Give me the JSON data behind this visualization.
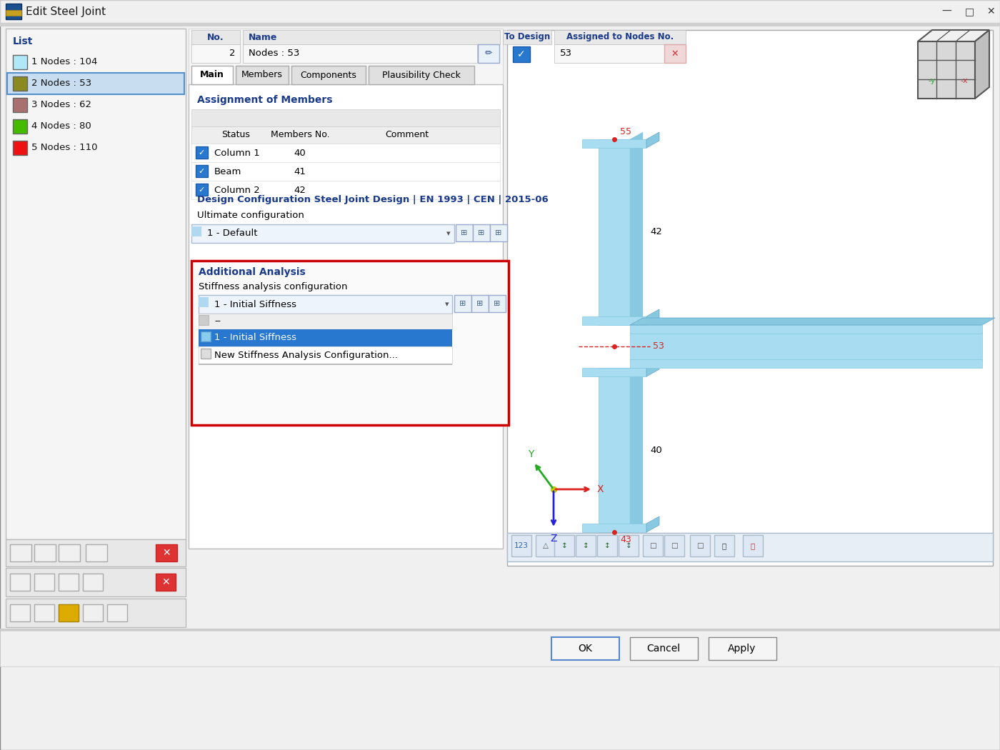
{
  "title": "Edit Steel Joint",
  "bg_color": "#e8e8e8",
  "list_items": [
    {
      "id": 1,
      "label": "1 Nodes : 104",
      "color": "#b0e8f8",
      "selected": false
    },
    {
      "id": 2,
      "label": "2 Nodes : 53",
      "color": "#8a8a20",
      "selected": true
    },
    {
      "id": 3,
      "label": "3 Nodes : 62",
      "color": "#aa7070",
      "selected": false
    },
    {
      "id": 4,
      "label": "4 Nodes : 80",
      "color": "#44bb00",
      "selected": false
    },
    {
      "id": 5,
      "label": "5 Nodes : 110",
      "color": "#ee1111",
      "selected": false
    }
  ],
  "no_value": "2",
  "name_value": "Nodes : 53",
  "assigned_nodes": "53",
  "tabs": [
    "Main",
    "Members",
    "Components",
    "Plausibility Check"
  ],
  "active_tab": "Main",
  "members": [
    {
      "name": "Column 1",
      "no": "40"
    },
    {
      "name": "Beam",
      "no": "41"
    },
    {
      "name": "Column 2",
      "no": "42"
    }
  ],
  "design_config_title": "Design Configuration Steel Joint Design | EN 1993 | CEN | 2015-06",
  "ultimate_config": "1 - Default",
  "additional_analysis_title": "Additional Analysis",
  "stiffness_label": "Stiffness analysis configuration",
  "stiffness_value": "1 - Initial Siffness",
  "dropdown_items": [
    "--",
    "1 - Initial Siffness",
    "New Stiffness Analysis Configuration..."
  ],
  "comment_label": "Comment",
  "highlight_color": "#2878d0",
  "red_border_color": "#cc0000",
  "steel_color_face": "#a8dcf0",
  "steel_color_side": "#88c8e0",
  "steel_color_dark": "#60a8c8",
  "ok_btn": "OK",
  "cancel_btn": "Cancel",
  "apply_btn": "Apply",
  "node_red": "#dd2222"
}
